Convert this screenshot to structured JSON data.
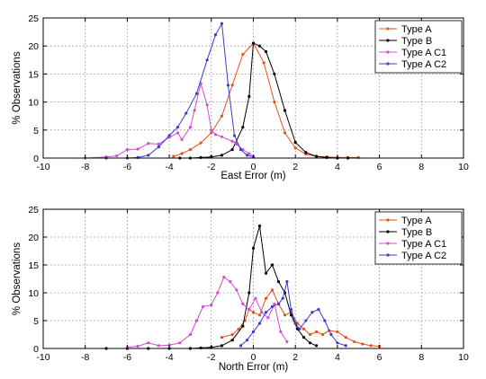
{
  "chart_data": [
    {
      "type": "line",
      "xlabel": "East Error (m)",
      "ylabel": "% Observations",
      "xlim": [
        -10,
        10
      ],
      "ylim": [
        0,
        25
      ],
      "xticks": [
        -10,
        -8,
        -6,
        -4,
        -2,
        0,
        2,
        4,
        6,
        8,
        10
      ],
      "yticks": [
        0,
        5,
        10,
        15,
        20,
        25
      ],
      "grid": true,
      "legend_position": "top-right",
      "series": [
        {
          "name": "Type A",
          "color": "#e8501a",
          "x": [
            -3.8,
            -3.4,
            -3.0,
            -2.5,
            -2.0,
            -1.5,
            -1.0,
            -0.5,
            0.0,
            0.5,
            1.0,
            1.5,
            2.0,
            2.5,
            3.0,
            3.5,
            4.0,
            4.5,
            5.0
          ],
          "y": [
            0.3,
            0.8,
            1.5,
            2.7,
            4.5,
            7.5,
            13.0,
            18.5,
            20.5,
            17.0,
            10.0,
            4.5,
            1.8,
            0.7,
            0.3,
            0.2,
            0.1,
            0.1,
            0.1
          ]
        },
        {
          "name": "Type B",
          "color": "#000000",
          "x": [
            -3.5,
            -3.0,
            -2.5,
            -2.0,
            -1.5,
            -1.0,
            -0.5,
            -0.2,
            0.0,
            0.3,
            0.6,
            1.0,
            1.5,
            2.0,
            2.5,
            3.0,
            3.5,
            4.0,
            4.5
          ],
          "y": [
            0.0,
            0.0,
            0.1,
            0.2,
            0.5,
            1.5,
            5.5,
            11.0,
            20.5,
            20.0,
            19.0,
            15.0,
            8.5,
            2.8,
            1.0,
            0.3,
            0.1,
            0.0,
            0.0
          ]
        },
        {
          "name": "Type A C1",
          "color": "#d14fd1",
          "x": [
            -8.0,
            -7.0,
            -6.5,
            -6.0,
            -5.5,
            -5.0,
            -4.5,
            -4.0,
            -3.6,
            -3.4,
            -3.0,
            -2.8,
            -2.5,
            -2.2,
            -2.0,
            -1.8,
            -1.5,
            -1.0,
            -0.8,
            -0.5,
            -0.2,
            0.0
          ],
          "y": [
            0.0,
            0.2,
            0.4,
            1.5,
            1.6,
            2.6,
            2.5,
            3.7,
            4.5,
            3.3,
            5.5,
            8.5,
            13.3,
            9.5,
            5.0,
            4.2,
            3.8,
            3.0,
            2.5,
            1.5,
            0.8,
            0.3
          ]
        },
        {
          "name": "Type A C2",
          "color": "#3b3bd6",
          "x": [
            -7.0,
            -6.0,
            -5.5,
            -5.0,
            -4.5,
            -4.0,
            -3.6,
            -3.2,
            -2.7,
            -2.2,
            -1.8,
            -1.5,
            -1.2,
            -0.9,
            -0.6,
            -0.3,
            0.0
          ],
          "y": [
            0.0,
            0.0,
            0.1,
            0.5,
            2.0,
            4.0,
            5.5,
            8.0,
            11.5,
            17.5,
            22.0,
            24.0,
            13.0,
            4.0,
            1.5,
            0.5,
            0.2
          ]
        }
      ]
    },
    {
      "type": "line",
      "xlabel": "North Error (m)",
      "ylabel": "% Observations",
      "xlim": [
        -10,
        10
      ],
      "ylim": [
        0,
        25
      ],
      "xticks": [
        -10,
        -8,
        -6,
        -4,
        -2,
        0,
        2,
        4,
        6,
        8,
        10
      ],
      "yticks": [
        0,
        5,
        10,
        15,
        20,
        25
      ],
      "grid": true,
      "legend_position": "top-right",
      "series": [
        {
          "name": "Type A",
          "color": "#e8501a",
          "x": [
            -1.5,
            -1.0,
            -0.7,
            -0.4,
            -0.2,
            0.0,
            0.3,
            0.6,
            0.9,
            1.2,
            1.5,
            1.8,
            2.1,
            2.4,
            2.7,
            3.0,
            3.3,
            3.6,
            4.0,
            4.4,
            4.8,
            5.2,
            5.6,
            6.0
          ],
          "y": [
            2.0,
            2.5,
            3.5,
            5.0,
            7.0,
            6.5,
            6.0,
            9.0,
            10.5,
            8.0,
            6.0,
            6.5,
            4.5,
            3.5,
            2.5,
            3.0,
            2.5,
            3.2,
            3.0,
            2.0,
            1.2,
            0.8,
            0.5,
            0.4
          ]
        },
        {
          "name": "Type B",
          "color": "#000000",
          "x": [
            -7.0,
            -6.0,
            -5.0,
            -4.0,
            -3.0,
            -2.5,
            -2.0,
            -1.5,
            -1.0,
            -0.5,
            -0.2,
            0.0,
            0.3,
            0.6,
            0.9,
            1.2,
            1.5,
            1.8,
            2.1,
            2.4,
            2.7,
            3.0
          ],
          "y": [
            0.0,
            0.0,
            0.0,
            0.0,
            0.0,
            0.1,
            0.2,
            0.5,
            1.5,
            4.0,
            10.0,
            18.0,
            22.0,
            13.5,
            15.0,
            12.0,
            10.0,
            6.0,
            3.5,
            2.0,
            1.0,
            0.5
          ]
        },
        {
          "name": "Type A C1",
          "color": "#d14fd1",
          "x": [
            -6.0,
            -5.5,
            -5.0,
            -4.5,
            -4.0,
            -3.5,
            -3.0,
            -2.7,
            -2.4,
            -2.0,
            -1.7,
            -1.4,
            -1.1,
            -0.8,
            -0.5,
            -0.2,
            0.1,
            0.4,
            0.7,
            1.0,
            1.3,
            1.6
          ],
          "y": [
            0.2,
            0.4,
            1.0,
            0.5,
            0.6,
            1.0,
            2.5,
            5.0,
            7.5,
            7.8,
            10.0,
            12.8,
            12.0,
            10.5,
            8.0,
            7.0,
            9.0,
            6.5,
            5.5,
            8.0,
            3.0,
            1.2
          ]
        },
        {
          "name": "Type A C2",
          "color": "#3b3bd6",
          "x": [
            -0.6,
            -0.3,
            0.0,
            0.3,
            0.6,
            0.9,
            1.2,
            1.4,
            1.6,
            1.8,
            2.0,
            2.2,
            2.5,
            2.8,
            3.1,
            3.4,
            3.7,
            4.0,
            4.4
          ],
          "y": [
            0.5,
            1.5,
            3.0,
            4.5,
            6.5,
            7.5,
            8.0,
            9.0,
            12.0,
            7.0,
            4.5,
            3.5,
            5.0,
            6.5,
            7.0,
            5.0,
            2.5,
            1.0,
            0.5
          ]
        }
      ]
    }
  ]
}
